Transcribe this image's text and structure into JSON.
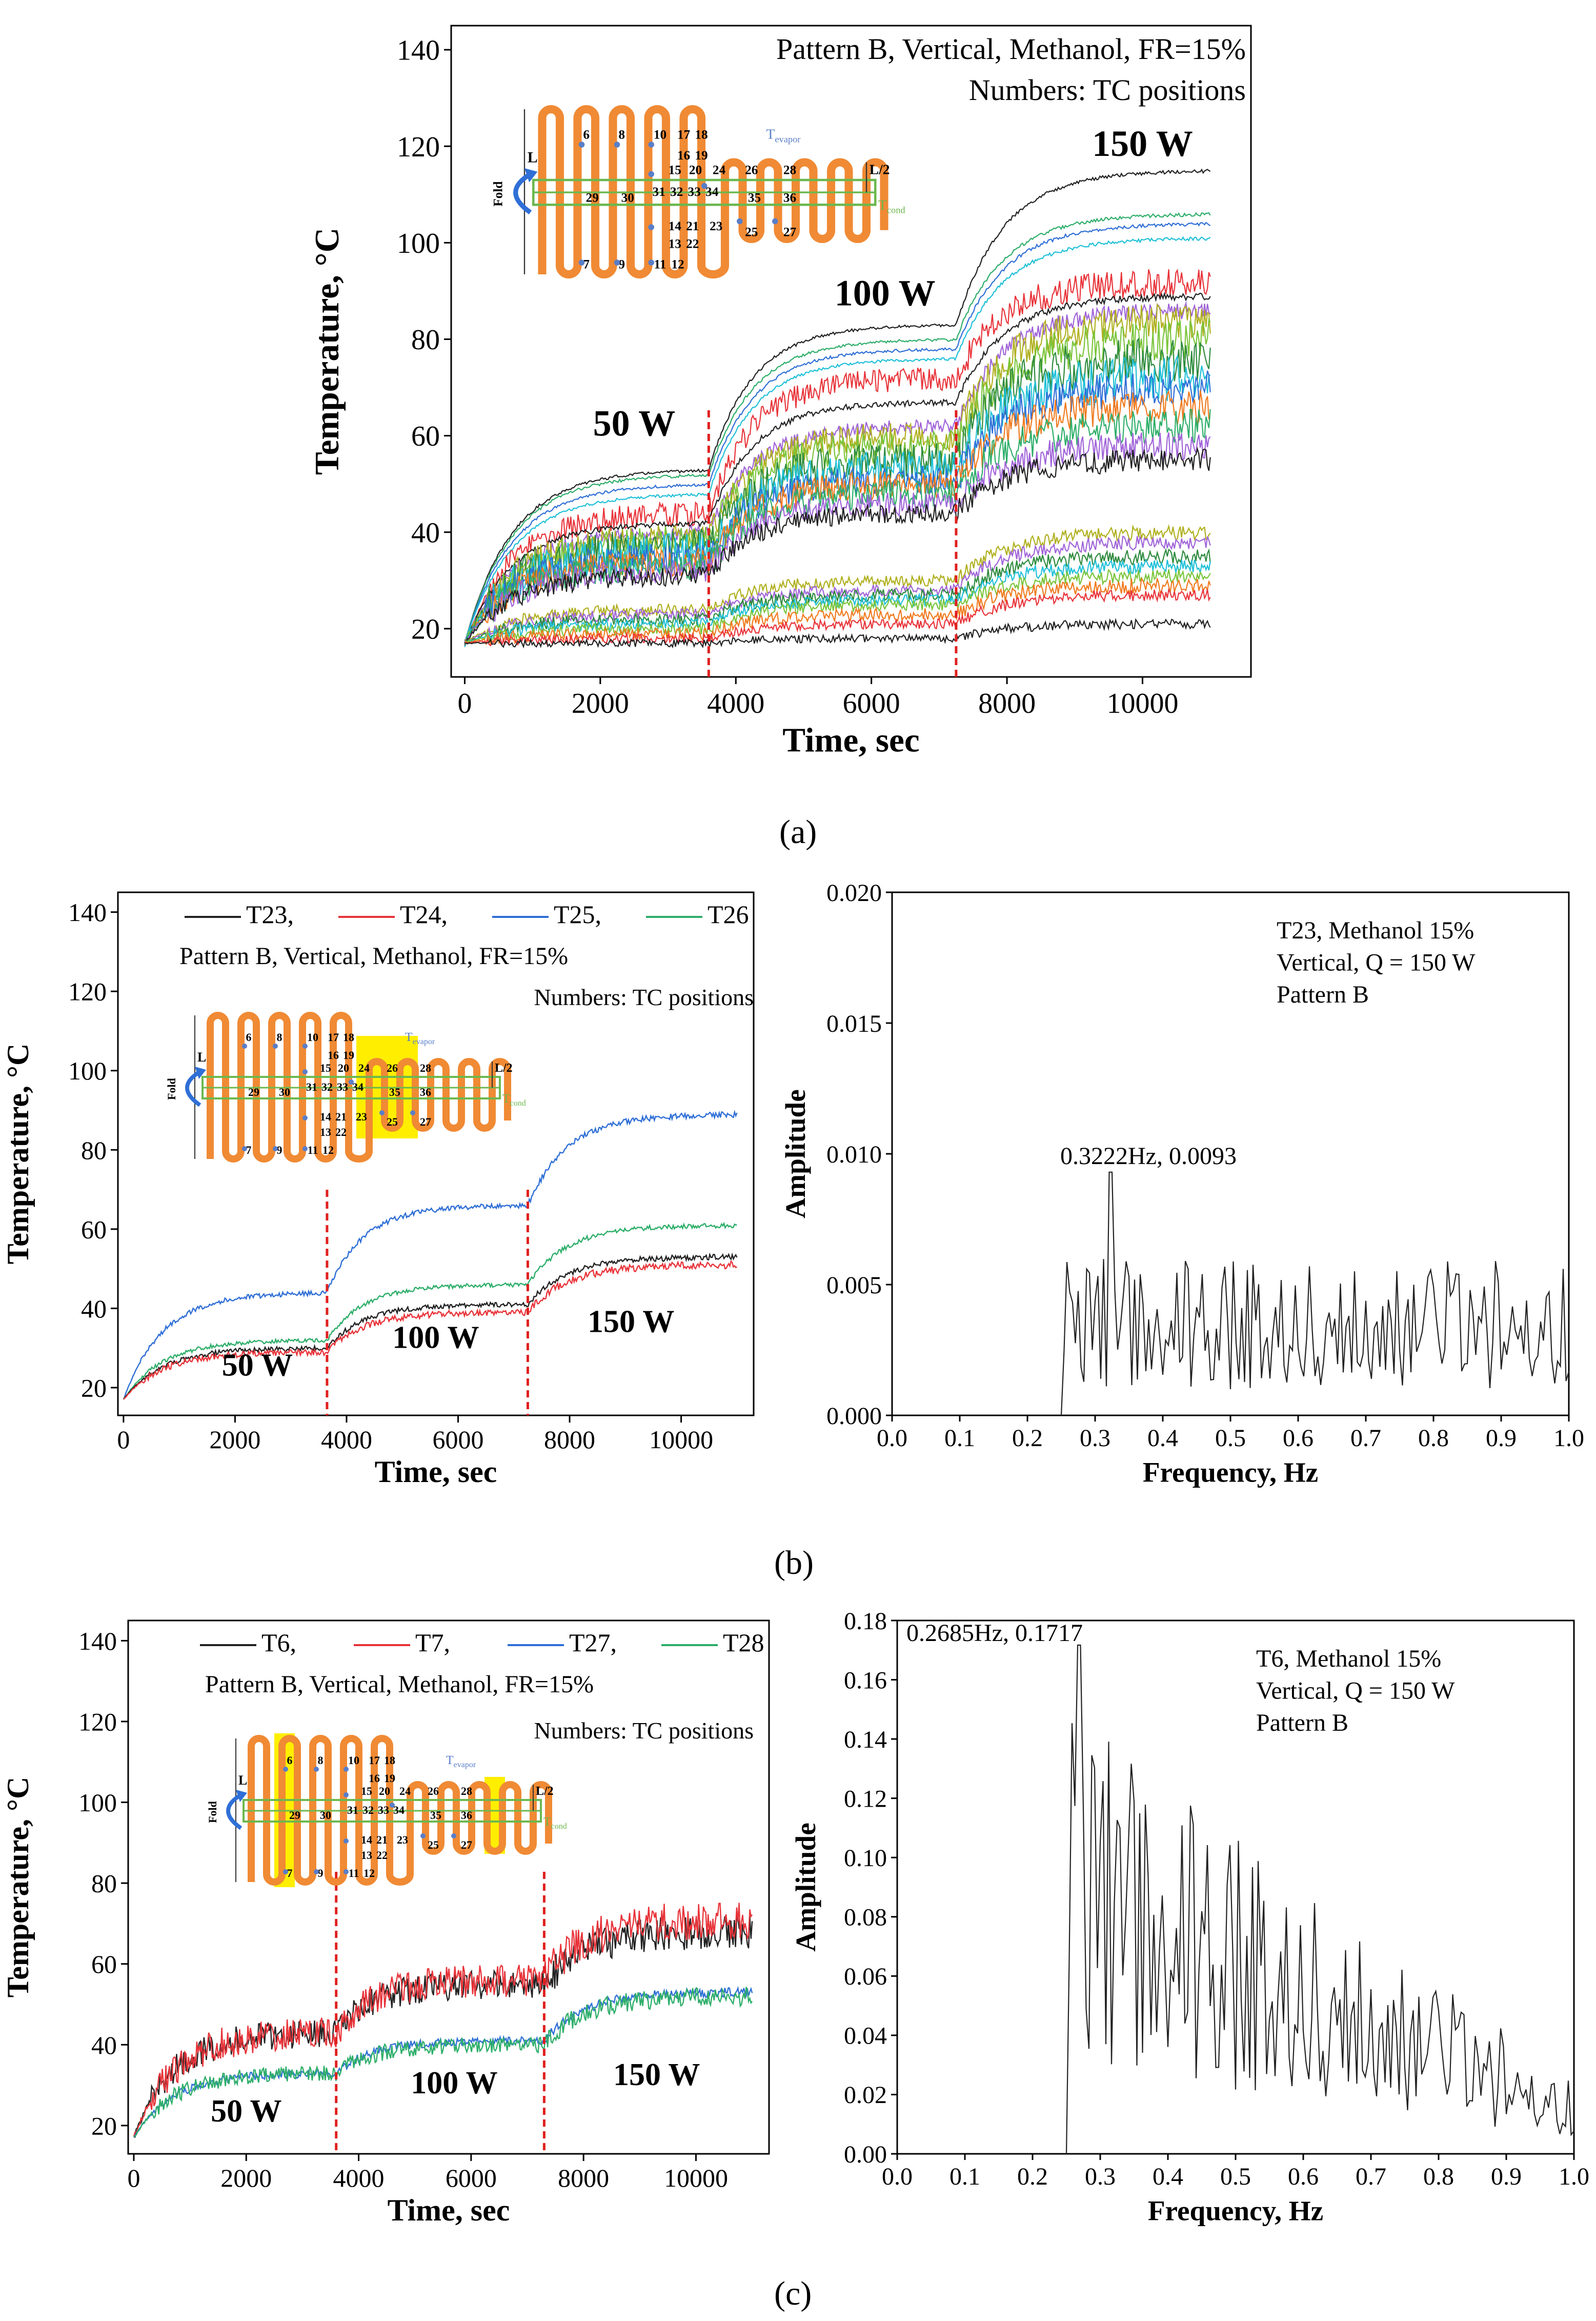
{
  "colors": {
    "black": "#222222",
    "red": "#e8343a",
    "blue": "#2f6fd6",
    "green": "#2eae6a",
    "orange": "#f07a1e",
    "purple": "#a064d8",
    "cyan": "#1fc0d8",
    "olive": "#b0b020",
    "darkgreen": "#2e8b3e",
    "limegreen": "#7ac43a",
    "brown": "#8a5a2a",
    "gray": "#777777",
    "tube": "#f08a34",
    "cond_box": "#6cb84e",
    "tc_dot": "#5a7ec8",
    "highlight": "#ffee00",
    "vline": "#e02020",
    "text": "#000000"
  },
  "captions": {
    "a": "(a)",
    "b": "(b)",
    "c": "(c)"
  },
  "chart_data": [
    {
      "id": "a",
      "type": "line",
      "title": "Pattern B, Vertical, Methanol, FR=15%",
      "subtitle": "Numbers: TC positions",
      "xlabel": "Time, sec",
      "ylabel": "Temperature, °C",
      "xlim": [
        -200,
        11600
      ],
      "ylim": [
        10,
        145
      ],
      "xticks": [
        0,
        2000,
        4000,
        6000,
        8000,
        10000
      ],
      "yticks": [
        20,
        40,
        60,
        80,
        100,
        120,
        140
      ],
      "annotations": [
        {
          "text": "50 W",
          "x": 2500,
          "y": 60
        },
        {
          "text": "100 W",
          "x": 6200,
          "y": 87
        },
        {
          "text": "150 W",
          "x": 10000,
          "y": 118
        }
      ],
      "vlines": [
        3600,
        7250
      ],
      "series_levels": [
        {
          "color": "black",
          "l1": 53,
          "l2": 83,
          "l3": 115,
          "noise": 0.3
        },
        {
          "color": "green",
          "l1": 52,
          "l2": 80,
          "l3": 106,
          "noise": 0.3
        },
        {
          "color": "blue",
          "l1": 50,
          "l2": 78,
          "l3": 104,
          "noise": 0.3
        },
        {
          "color": "cyan",
          "l1": 48,
          "l2": 76,
          "l3": 101,
          "noise": 0.3
        },
        {
          "color": "red",
          "l1": 44,
          "l2": 72,
          "l3": 92,
          "noise": 2.5
        },
        {
          "color": "black",
          "l1": 42,
          "l2": 67,
          "l3": 89,
          "noise": 0.6
        },
        {
          "color": "purple",
          "l1": 40,
          "l2": 62,
          "l3": 86,
          "noise": 1.5
        },
        {
          "color": "olive",
          "l1": 39,
          "l2": 60,
          "l3": 84,
          "noise": 3
        },
        {
          "color": "limegreen",
          "l1": 38,
          "l2": 58,
          "l3": 80,
          "noise": 3.5
        },
        {
          "color": "darkgreen",
          "l1": 37,
          "l2": 55,
          "l3": 76,
          "noise": 4
        },
        {
          "color": "cyan",
          "l1": 36,
          "l2": 53,
          "l3": 72,
          "noise": 4
        },
        {
          "color": "blue",
          "l1": 35,
          "l2": 51,
          "l3": 70,
          "noise": 3
        },
        {
          "color": "orange",
          "l1": 34,
          "l2": 50,
          "l3": 66,
          "noise": 3
        },
        {
          "color": "green",
          "l1": 33,
          "l2": 48,
          "l3": 62,
          "noise": 3
        },
        {
          "color": "purple",
          "l1": 32,
          "l2": 46,
          "l3": 58,
          "noise": 2.5
        },
        {
          "color": "black",
          "l1": 31,
          "l2": 44,
          "l3": 55,
          "noise": 2
        },
        {
          "color": "olive",
          "l1": 24,
          "l2": 30,
          "l3": 40,
          "noise": 1.2
        },
        {
          "color": "purple",
          "l1": 23,
          "l2": 28,
          "l3": 38,
          "noise": 1.2
        },
        {
          "color": "darkgreen",
          "l1": 22,
          "l2": 27,
          "l3": 35,
          "noise": 1.3
        },
        {
          "color": "cyan",
          "l1": 21,
          "l2": 26,
          "l3": 33,
          "noise": 1.2
        },
        {
          "color": "limegreen",
          "l1": 20,
          "l2": 25,
          "l3": 31,
          "noise": 1.2
        },
        {
          "color": "orange",
          "l1": 19,
          "l2": 23,
          "l3": 29,
          "noise": 1.3
        },
        {
          "color": "red",
          "l1": 18,
          "l2": 21,
          "l3": 27,
          "noise": 1
        },
        {
          "color": "black",
          "l1": 17,
          "l2": 18,
          "l3": 21,
          "noise": 0.8
        }
      ]
    },
    {
      "id": "b_time",
      "type": "line",
      "title": "Pattern B, Vertical, Methanol, FR=15%",
      "subtitle": "Numbers: TC positions",
      "xlabel": "Time, sec",
      "ylabel": "Temperature, °C",
      "xlim": [
        -100,
        11300
      ],
      "ylim": [
        13,
        145
      ],
      "xticks": [
        0,
        2000,
        4000,
        6000,
        8000,
        10000
      ],
      "yticks": [
        20,
        40,
        60,
        80,
        100,
        120,
        140
      ],
      "legend": [
        {
          "label": "T23,",
          "color": "black"
        },
        {
          "label": "T24,",
          "color": "red"
        },
        {
          "label": "T25,",
          "color": "blue"
        },
        {
          "label": "T26",
          "color": "green"
        }
      ],
      "annotations": [
        {
          "text": "50 W",
          "x": 2400,
          "y": 23
        },
        {
          "text": "100 W",
          "x": 5600,
          "y": 30
        },
        {
          "text": "150 W",
          "x": 9100,
          "y": 34
        }
      ],
      "vlines": [
        3650,
        7250
      ],
      "series_levels": [
        {
          "color": "blue",
          "l1": 44,
          "l2": 66,
          "l3": 89,
          "noise": 0.6
        },
        {
          "color": "green",
          "l1": 32,
          "l2": 46,
          "l3": 61,
          "noise": 0.5
        },
        {
          "color": "black",
          "l1": 30,
          "l2": 41,
          "l3": 53,
          "noise": 0.6
        },
        {
          "color": "red",
          "l1": 29,
          "l2": 39,
          "l3": 51,
          "noise": 0.8
        }
      ]
    },
    {
      "id": "b_fft",
      "type": "line",
      "xlabel": "Frequency, Hz",
      "ylabel": "Amplitude",
      "xlim": [
        0,
        1
      ],
      "ylim": [
        0,
        0.02
      ],
      "xticks": [
        "0.0",
        "0.1",
        "0.2",
        "0.3",
        "0.4",
        "0.5",
        "0.6",
        "0.7",
        "0.8",
        "0.9",
        "1.0"
      ],
      "yticks": [
        "0.000",
        "0.005",
        "0.010",
        "0.015",
        "0.020"
      ],
      "peak_label": "0.3222Hz, 0.0093",
      "peak": {
        "x": 0.3222,
        "y": 0.0093
      },
      "info": [
        "T23, Methanol 15%",
        "Vertical, Q = 150 W",
        "Pattern B"
      ],
      "start_freq": 0.25,
      "base_level": 0.0035,
      "spread": 0.0025
    },
    {
      "id": "c_time",
      "type": "line",
      "title": "Pattern B, Vertical, Methanol, FR=15%",
      "subtitle": "Numbers: TC positions",
      "xlabel": "Time, sec",
      "ylabel": "Temperature, °C",
      "xlim": [
        -100,
        11300
      ],
      "ylim": [
        13,
        145
      ],
      "xticks": [
        0,
        2000,
        4000,
        6000,
        8000,
        10000
      ],
      "yticks": [
        20,
        40,
        60,
        80,
        100,
        120,
        140
      ],
      "legend": [
        {
          "label": "T6,",
          "color": "black"
        },
        {
          "label": "T7,",
          "color": "red"
        },
        {
          "label": "T27,",
          "color": "blue"
        },
        {
          "label": "T28",
          "color": "green"
        }
      ],
      "annotations": [
        {
          "text": "50 W",
          "x": 2000,
          "y": 21
        },
        {
          "text": "100 W",
          "x": 5700,
          "y": 28
        },
        {
          "text": "150 W",
          "x": 9300,
          "y": 30
        }
      ],
      "vlines": [
        3600,
        7300
      ],
      "series_levels": [
        {
          "color": "black",
          "l1": 43,
          "l2": 55,
          "l3": 68,
          "noise": 3.5
        },
        {
          "color": "red",
          "l1": 43,
          "l2": 56,
          "l3": 71,
          "noise": 4
        },
        {
          "color": "blue",
          "l1": 33,
          "l2": 41,
          "l3": 53,
          "noise": 1
        },
        {
          "color": "green",
          "l1": 33,
          "l2": 40,
          "l3": 52,
          "noise": 2
        }
      ]
    },
    {
      "id": "c_fft",
      "type": "line",
      "xlabel": "Frequency, Hz",
      "ylabel": "Amplitude",
      "xlim": [
        0,
        1
      ],
      "ylim": [
        0,
        0.18
      ],
      "xticks": [
        "0.0",
        "0.1",
        "0.2",
        "0.3",
        "0.4",
        "0.5",
        "0.6",
        "0.7",
        "0.8",
        "0.9",
        "1.0"
      ],
      "yticks": [
        "0.00",
        "0.02",
        "0.04",
        "0.06",
        "0.08",
        "0.10",
        "0.12",
        "0.14",
        "0.16",
        "0.18"
      ],
      "peak_label": "0.2685Hz, 0.1717",
      "peak": {
        "x": 0.2685,
        "y": 0.1717
      },
      "info": [
        "T6, Methanol 15%",
        "Vertical, Q = 150 W",
        "Pattern B"
      ],
      "start_freq": 0.25,
      "base_level": 0.09,
      "spread": 0.06
    }
  ],
  "schematic": {
    "fold": "Fold",
    "L": "L",
    "L2": "L/2",
    "tevap": "T",
    "tevap_sub": "evapor",
    "tcond": "T",
    "tcond_sub": "cond",
    "tc_labels": [
      "6",
      "8",
      "10",
      "17",
      "18",
      "16",
      "19",
      "15",
      "20",
      "24",
      "26",
      "28",
      "29",
      "30",
      "31",
      "32",
      "33",
      "34",
      "35",
      "36",
      "14",
      "21",
      "23",
      "25",
      "27",
      "13",
      "22",
      "7",
      "9",
      "11",
      "12"
    ]
  }
}
